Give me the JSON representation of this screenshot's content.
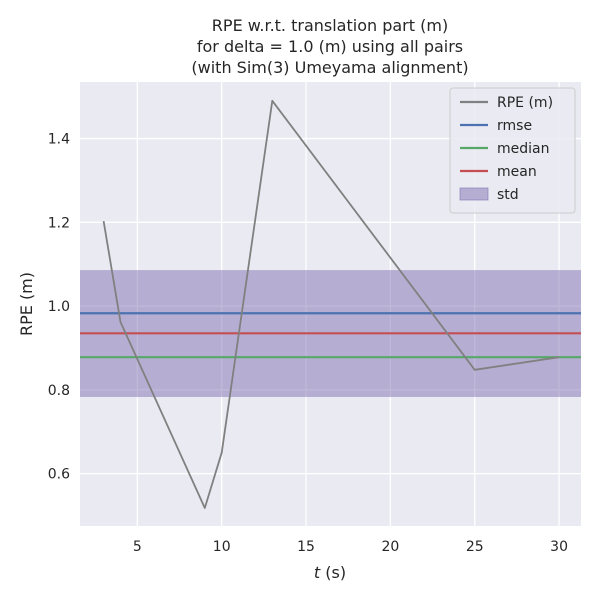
{
  "chart_data": {
    "type": "line",
    "title_lines": [
      "RPE w.r.t. translation part (m)",
      "for delta = 1.0 (m) using all pairs",
      "(with Sim(3) Umeyama alignment)"
    ],
    "xlabel_italic": "t",
    "xlabel_rest": " (s)",
    "ylabel": "RPE (m)",
    "xlim": [
      1.6,
      31.3
    ],
    "ylim": [
      0.475,
      1.535
    ],
    "x_ticks": [
      5,
      10,
      15,
      20,
      25,
      30
    ],
    "y_ticks": [
      0.6,
      0.8,
      1.0,
      1.2,
      1.4
    ],
    "y_tick_labels": [
      "0.6",
      "0.8",
      "1.0",
      "1.2",
      "1.4"
    ],
    "grid": true,
    "legend_position": "top-right",
    "series": [
      {
        "name": "RPE (m)",
        "color": "#808080",
        "x": [
          3,
          4,
          9,
          10,
          13,
          25,
          30
        ],
        "y": [
          1.203,
          0.962,
          0.518,
          0.65,
          1.49,
          0.848,
          0.878
        ]
      }
    ],
    "stats": [
      {
        "name": "rmse",
        "value": 0.983,
        "color": "#4c72b0"
      },
      {
        "name": "median",
        "value": 0.878,
        "color": "#55a868"
      },
      {
        "name": "mean",
        "value": 0.935,
        "color": "#c44e52"
      }
    ],
    "std_band": {
      "name": "std",
      "lower": 0.783,
      "upper": 1.086,
      "color": "#8172b2"
    },
    "colors": {
      "plot_background": "#eaeaf2",
      "grid": "#ffffff",
      "text": "#262626"
    }
  }
}
